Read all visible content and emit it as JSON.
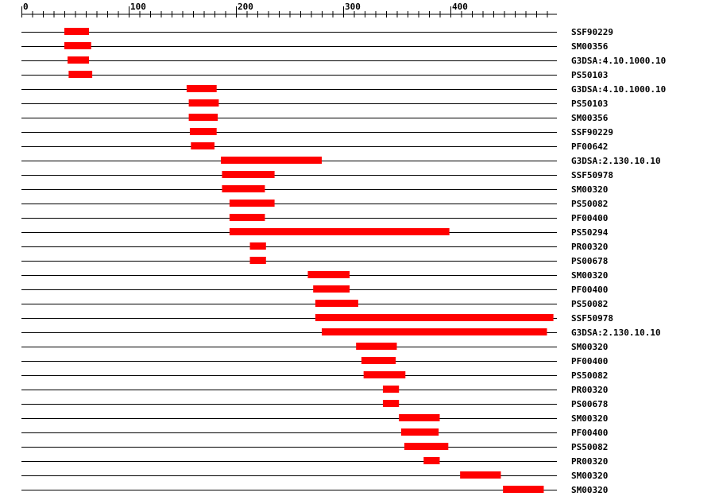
{
  "chart_data": {
    "type": "bar",
    "axis": {
      "min": 0,
      "max": 500,
      "major_ticks": [
        0,
        100,
        200,
        300,
        400
      ],
      "minor_step": 10
    },
    "colors": {
      "feature": "#ff0000",
      "line": "#000000"
    },
    "rows": [
      {
        "label": "SSF90229",
        "start": 40,
        "end": 63
      },
      {
        "label": "SM00356",
        "start": 40,
        "end": 65
      },
      {
        "label": "G3DSA:4.10.1000.10",
        "start": 43,
        "end": 63
      },
      {
        "label": "PS50103",
        "start": 44,
        "end": 66
      },
      {
        "label": "G3DSA:4.10.1000.10",
        "start": 154,
        "end": 182
      },
      {
        "label": "PS50103",
        "start": 156,
        "end": 184
      },
      {
        "label": "SM00356",
        "start": 156,
        "end": 183
      },
      {
        "label": "SSF90229",
        "start": 157,
        "end": 182
      },
      {
        "label": "PF00642",
        "start": 158,
        "end": 180
      },
      {
        "label": "G3DSA:2.130.10.10",
        "start": 186,
        "end": 280
      },
      {
        "label": "SSF50978",
        "start": 187,
        "end": 236
      },
      {
        "label": "SM00320",
        "start": 187,
        "end": 227
      },
      {
        "label": "PS50082",
        "start": 194,
        "end": 236
      },
      {
        "label": "PF00400",
        "start": 194,
        "end": 227
      },
      {
        "label": "PS50294",
        "start": 194,
        "end": 399
      },
      {
        "label": "PR00320",
        "start": 213,
        "end": 228
      },
      {
        "label": "PS00678",
        "start": 213,
        "end": 228
      },
      {
        "label": "SM00320",
        "start": 267,
        "end": 306
      },
      {
        "label": "PF00400",
        "start": 272,
        "end": 306
      },
      {
        "label": "PS50082",
        "start": 274,
        "end": 314
      },
      {
        "label": "SSF50978",
        "start": 274,
        "end": 496
      },
      {
        "label": "G3DSA:2.130.10.10",
        "start": 280,
        "end": 490
      },
      {
        "label": "SM00320",
        "start": 312,
        "end": 350
      },
      {
        "label": "PF00400",
        "start": 317,
        "end": 349
      },
      {
        "label": "PS50082",
        "start": 319,
        "end": 358
      },
      {
        "label": "PR00320",
        "start": 337,
        "end": 352
      },
      {
        "label": "PS00678",
        "start": 337,
        "end": 352
      },
      {
        "label": "SM00320",
        "start": 352,
        "end": 390
      },
      {
        "label": "PF00400",
        "start": 354,
        "end": 389
      },
      {
        "label": "PS50082",
        "start": 357,
        "end": 398
      },
      {
        "label": "PR00320",
        "start": 375,
        "end": 390
      },
      {
        "label": "SM00320",
        "start": 409,
        "end": 447
      },
      {
        "label": "SM00320",
        "start": 449,
        "end": 487
      }
    ]
  }
}
